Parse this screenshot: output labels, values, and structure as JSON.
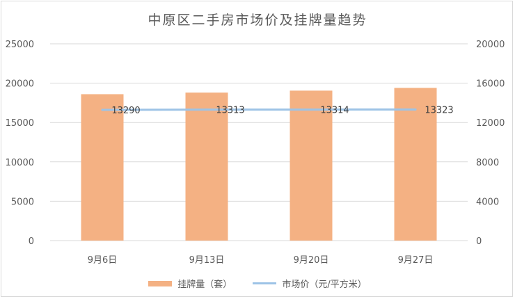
{
  "chart_data": {
    "type": "bar+line",
    "title": "中原区二手房市场价及挂牌量趋势",
    "categories": [
      "9月6日",
      "9月13日",
      "9月20日",
      "9月27日"
    ],
    "series": [
      {
        "name": "挂牌量（套）",
        "type": "bar",
        "axis": "left",
        "color": "#f4b183",
        "values": [
          18600,
          18800,
          19050,
          19400
        ]
      },
      {
        "name": "市场价（元/平方米）",
        "type": "line",
        "axis": "right",
        "color": "#9dc3e6",
        "values": [
          13290,
          13313,
          13314,
          13323
        ],
        "data_labels": [
          "13290",
          "13313",
          "13314",
          "13323"
        ]
      }
    ],
    "y_left": {
      "min": 0,
      "max": 25000,
      "ticks": [
        "0",
        "5000",
        "10000",
        "15000",
        "20000",
        "25000"
      ]
    },
    "y_right": {
      "min": 0,
      "max": 20000,
      "ticks": [
        "0",
        "4000",
        "8000",
        "12000",
        "16000",
        "20000"
      ]
    },
    "grid": true,
    "legend_position": "bottom"
  }
}
